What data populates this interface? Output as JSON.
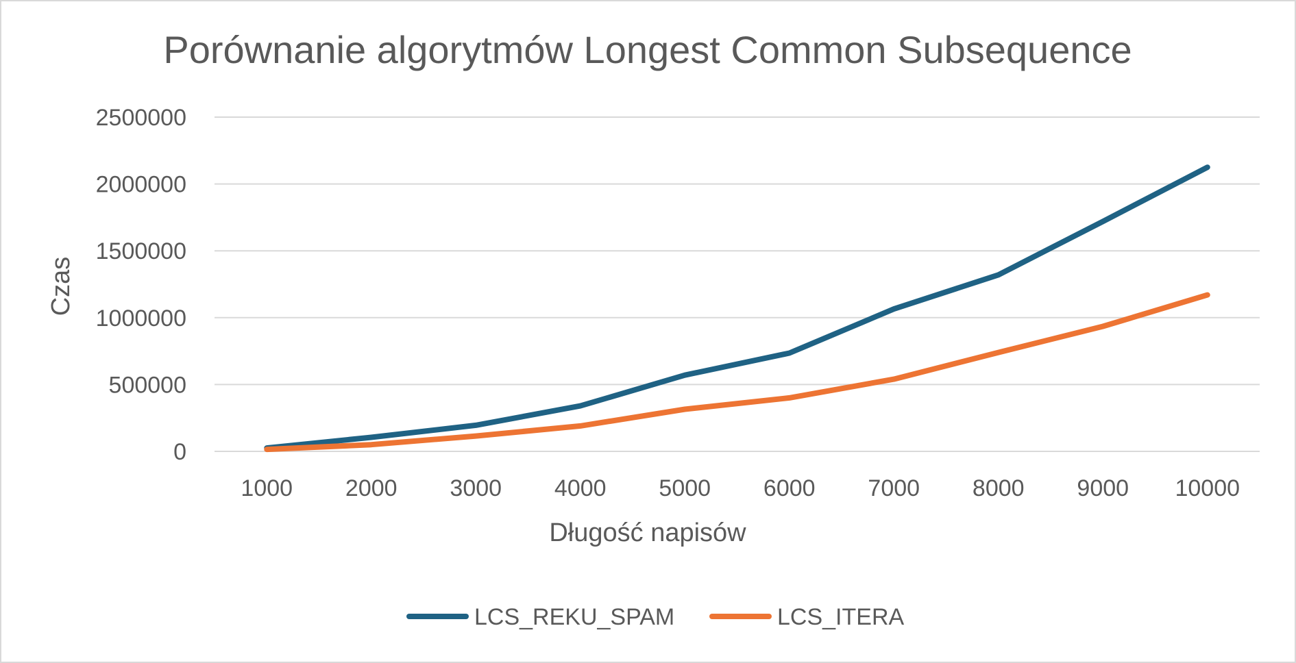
{
  "chart_data": {
    "type": "line",
    "title": "Porównanie algorytmów Longest Common Subsequence",
    "xlabel": "Długość napisów",
    "ylabel": "Czas",
    "categories": [
      "1000",
      "2000",
      "3000",
      "4000",
      "5000",
      "6000",
      "7000",
      "8000",
      "9000",
      "10000"
    ],
    "y_ticks": [
      "0",
      "500000",
      "1000000",
      "1500000",
      "2000000",
      "2500000"
    ],
    "ylim": [
      0,
      2500000
    ],
    "grid": true,
    "legend_position": "bottom",
    "series": [
      {
        "name": "LCS_REKU_SPAM",
        "color": "#1f6284",
        "values": [
          25000,
          105000,
          195000,
          340000,
          570000,
          735000,
          1065000,
          1320000,
          1720000,
          2125000
        ]
      },
      {
        "name": "LCS_ITERA",
        "color": "#ed7433",
        "values": [
          15000,
          50000,
          115000,
          190000,
          315000,
          400000,
          540000,
          740000,
          935000,
          1170000
        ]
      }
    ]
  }
}
